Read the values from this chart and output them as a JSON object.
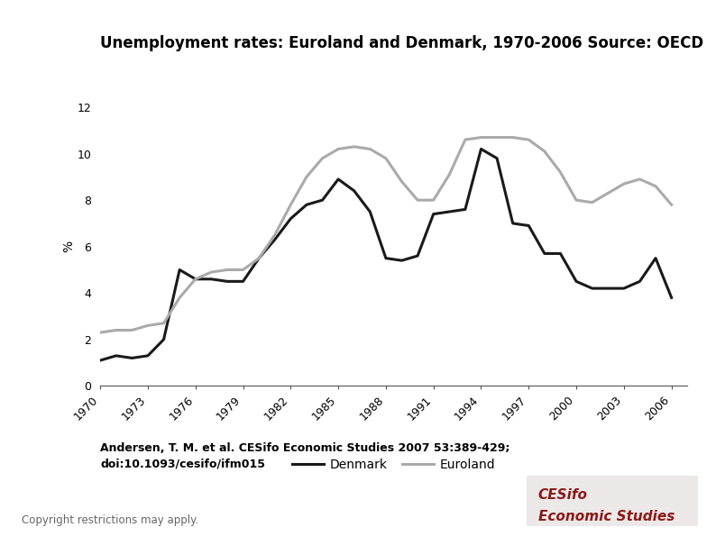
{
  "title": "Unemployment rates: Euroland and Denmark, 1970-2006 Source: OECD",
  "ylabel": "%",
  "ylim": [
    0,
    12
  ],
  "yticks": [
    0,
    2,
    4,
    6,
    8,
    10,
    12
  ],
  "xtick_years": [
    1970,
    1973,
    1976,
    1979,
    1982,
    1985,
    1988,
    1991,
    1994,
    1997,
    2000,
    2003,
    2006
  ],
  "denmark": {
    "years": [
      1970,
      1971,
      1972,
      1973,
      1974,
      1975,
      1976,
      1977,
      1978,
      1979,
      1980,
      1981,
      1982,
      1983,
      1984,
      1985,
      1986,
      1987,
      1988,
      1989,
      1990,
      1991,
      1992,
      1993,
      1994,
      1995,
      1996,
      1997,
      1998,
      1999,
      2000,
      2001,
      2002,
      2003,
      2004,
      2005,
      2006
    ],
    "values": [
      1.1,
      1.3,
      1.2,
      1.3,
      2.0,
      5.0,
      4.6,
      4.6,
      4.5,
      4.5,
      5.5,
      6.3,
      7.2,
      7.8,
      8.0,
      8.9,
      8.4,
      7.5,
      5.5,
      5.4,
      5.6,
      7.4,
      7.5,
      7.6,
      10.2,
      9.8,
      7.0,
      6.9,
      5.7,
      5.7,
      4.5,
      4.2,
      4.2,
      4.2,
      4.5,
      5.5,
      3.8
    ],
    "color": "#1a1a1a",
    "linewidth": 2.2
  },
  "euroland": {
    "years": [
      1970,
      1971,
      1972,
      1973,
      1974,
      1975,
      1976,
      1977,
      1978,
      1979,
      1980,
      1981,
      1982,
      1983,
      1984,
      1985,
      1986,
      1987,
      1988,
      1989,
      1990,
      1991,
      1992,
      1993,
      1994,
      1995,
      1996,
      1997,
      1998,
      1999,
      2000,
      2001,
      2002,
      2003,
      2004,
      2005,
      2006
    ],
    "values": [
      2.3,
      2.4,
      2.4,
      2.6,
      2.7,
      3.8,
      4.6,
      4.9,
      5.0,
      5.0,
      5.5,
      6.5,
      7.8,
      9.0,
      9.8,
      10.2,
      10.3,
      10.2,
      9.8,
      8.8,
      8.0,
      8.0,
      9.1,
      10.6,
      10.7,
      10.7,
      10.7,
      10.6,
      10.1,
      9.2,
      8.0,
      7.9,
      8.3,
      8.7,
      8.9,
      8.6,
      7.8
    ],
    "color": "#aaaaaa",
    "linewidth": 2.2
  },
  "legend_labels": [
    "Denmark",
    "Euroland"
  ],
  "citation_line1": "Andersen, T. M. et al. CESifo Economic Studies 2007 53:389-429;",
  "citation_line2": "doi:10.1093/cesifo/ifm015",
  "copyright_text": "Copyright restrictions may apply.",
  "cesifo_text_line1": "CESifo",
  "cesifo_text_line2": "Economic Studies",
  "background_color": "#ffffff",
  "plot_bg_color": "#ffffff",
  "title_fontsize": 12,
  "axis_label_fontsize": 10,
  "tick_fontsize": 9,
  "legend_fontsize": 10,
  "citation_fontsize": 9,
  "cesifo_box_color": "#ece8e8",
  "cesifo_text_color": "#8b1a1a"
}
